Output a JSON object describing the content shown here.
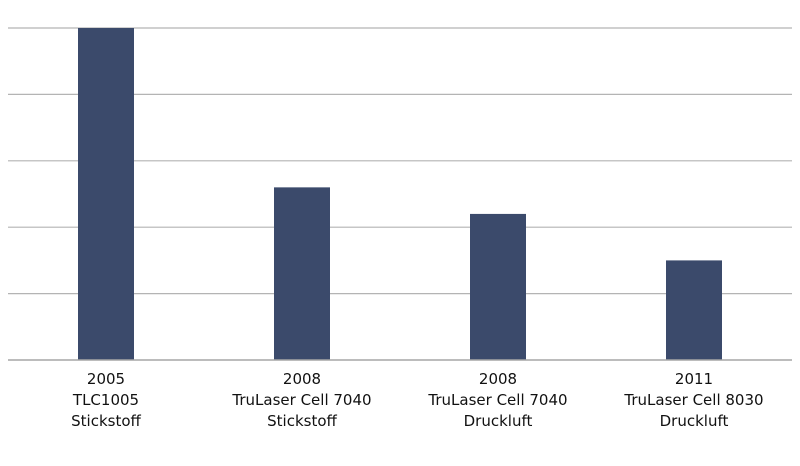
{
  "chart_data": {
    "type": "bar",
    "categories": [
      [
        "2005",
        "TLC1005",
        "Stickstoff"
      ],
      [
        "2008",
        "TruLaser Cell 7040",
        "Stickstoff"
      ],
      [
        "2008",
        "TruLaser Cell 7040",
        "Druckluft"
      ],
      [
        "2011",
        "TruLaser Cell 8030",
        "Druckluft"
      ]
    ],
    "values": [
      100,
      52,
      44,
      30
    ],
    "ylim": [
      0,
      100
    ],
    "y_gridlines": 5,
    "grid": true,
    "legend": "none",
    "bar_color": "#3b4a6b",
    "grid_color": "#b4b4b4",
    "title": "",
    "xlabel": "",
    "ylabel": ""
  }
}
